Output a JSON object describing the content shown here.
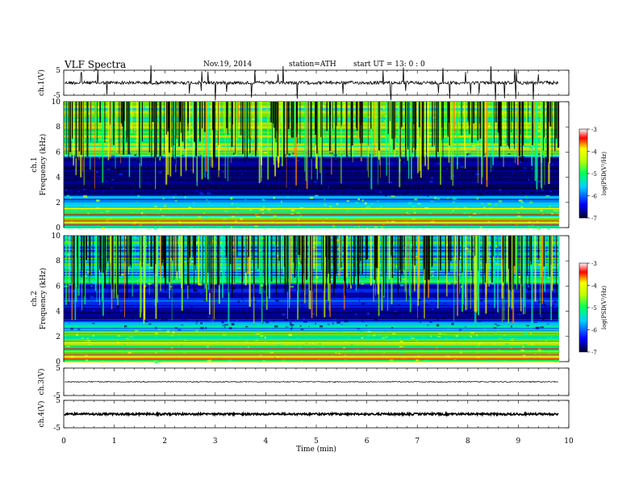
{
  "header": {
    "title": "VLF  Spectra",
    "date": "Nov.19, 2014",
    "station": "station=ATH",
    "start": "start  UT  =   13: 0  : 0"
  },
  "chart_data": [
    {
      "type": "line",
      "name": "ch1-waveform",
      "ylabel": "ch.1(V)",
      "ylim": [
        -5,
        5
      ],
      "yticks": [
        "5",
        "-5"
      ],
      "xlim": [
        0,
        10
      ],
      "data_extent": [
        0,
        9.8
      ],
      "baseline": 0
    },
    {
      "type": "heatmap",
      "name": "ch1-spectrogram",
      "ylabel": "ch.1 Frequency (kHz)",
      "ylim": [
        0,
        10
      ],
      "yticks": [
        "0",
        "2",
        "4",
        "6",
        "8",
        "10"
      ],
      "colorbar": {
        "label": "log(PSD(V²/Hz)",
        "range": [
          -7,
          -3
        ],
        "ticks": [
          "-3",
          "-4",
          "-5",
          "-6",
          "-7"
        ]
      }
    },
    {
      "type": "heatmap",
      "name": "ch2-spectrogram",
      "ylabel": "ch.2 Frequency (kHz)",
      "ylim": [
        0,
        10
      ],
      "yticks": [
        "0",
        "2",
        "4",
        "6",
        "8",
        "10"
      ],
      "colorbar": {
        "label": "log(PSD(V²/Hz)",
        "range": [
          -7,
          -3
        ],
        "ticks": [
          "-3",
          "-4",
          "-5",
          "-6",
          "-7"
        ]
      }
    },
    {
      "type": "line",
      "name": "ch3-waveform",
      "ylabel": "ch.3(V)",
      "ylim": [
        -5,
        5
      ],
      "yticks": [
        "5",
        "-5"
      ],
      "baseline": 0
    },
    {
      "type": "line",
      "name": "ch4-waveform",
      "ylabel": "ch.4(V)",
      "ylim": [
        -5,
        5
      ],
      "yticks": [
        "5",
        "-5"
      ],
      "baseline": 0
    }
  ],
  "xaxis": {
    "label": "Time  (min)",
    "range": [
      0,
      10
    ],
    "ticks": [
      "0",
      "1",
      "2",
      "3",
      "4",
      "5",
      "6",
      "7",
      "8",
      "9",
      "10"
    ]
  },
  "colors": {
    "spec_background": "#000050",
    "line": "#000000"
  }
}
